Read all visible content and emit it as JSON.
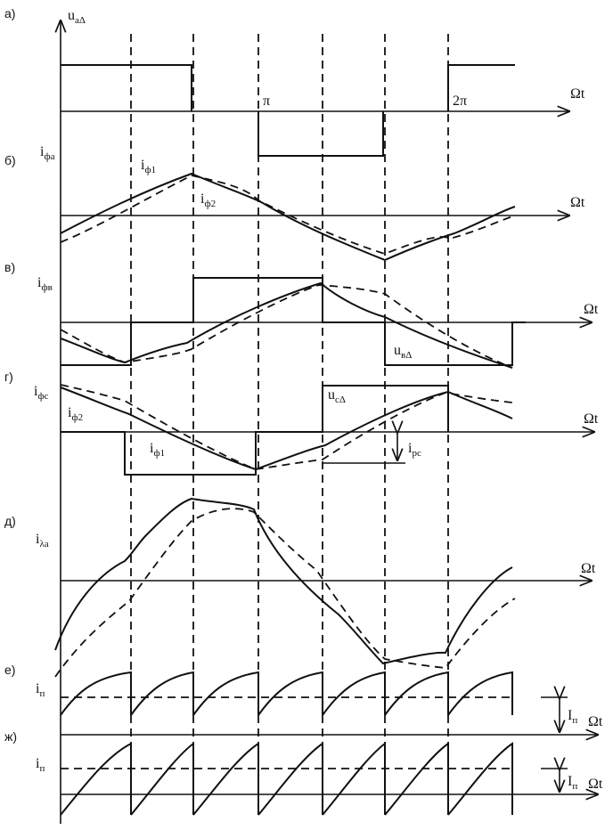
{
  "panels": [
    {
      "label": "а)",
      "y_axis": {
        "symbol": "u",
        "sub": "аΔ"
      },
      "x_axis": "Ωt",
      "ticks": [
        "π",
        "2π"
      ]
    },
    {
      "label": "б)",
      "y_axis": {
        "symbol": "i",
        "sub": "фа"
      },
      "x_axis": "Ωt",
      "annotations": [
        {
          "symbol": "i",
          "sub": "ф1"
        },
        {
          "symbol": "i",
          "sub": "ф2"
        }
      ]
    },
    {
      "label": "в)",
      "y_axis": {
        "symbol": "i",
        "sub": "фв"
      },
      "x_axis": "Ωt",
      "annotations": [
        {
          "symbol": "u",
          "sub": "вΔ"
        }
      ]
    },
    {
      "label": "г)",
      "y_axis": {
        "symbol": "i",
        "sub": "фс"
      },
      "x_axis": "Ωt",
      "annotations": [
        {
          "symbol": "u",
          "sub": "сΔ"
        },
        {
          "symbol": "i",
          "sub": "ф2"
        },
        {
          "symbol": "i",
          "sub": "ф1"
        },
        {
          "symbol": "i",
          "sub": "рс"
        }
      ]
    },
    {
      "label": "д)",
      "y_axis": {
        "symbol": "i",
        "sub": "λа"
      },
      "x_axis": "Ωt"
    },
    {
      "label": "е)",
      "y_axis": {
        "symbol": "i",
        "sub": "п"
      },
      "x_axis": "Ωt",
      "annotations": [
        {
          "symbol": "I",
          "sub": "п"
        }
      ]
    },
    {
      "label": "ж)",
      "y_axis": {
        "symbol": "i",
        "sub": "п"
      },
      "x_axis": "Ωt",
      "annotations": [
        {
          "symbol": "I",
          "sub": "п"
        }
      ]
    }
  ]
}
